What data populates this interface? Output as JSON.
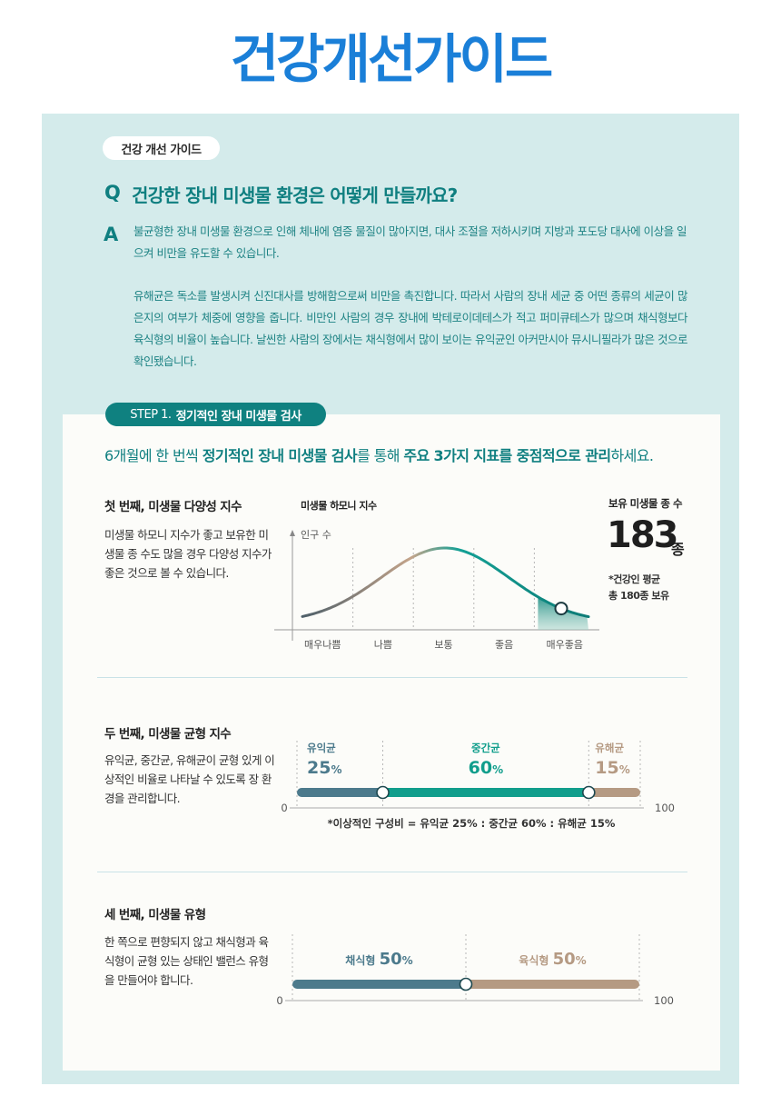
{
  "page_title": "건강개선가이드",
  "guide_badge": "건강 개선 가이드",
  "qa": {
    "q_letter": "Q",
    "question": "건강한 장내 미생물 환경은 어떻게 만들까요?",
    "a_letter": "A",
    "answer_p1": "불균형한 장내 미생물 환경으로 인해 체내에 염증 물질이 많아지면, 대사 조절을 저하시키며 지방과 포도당 대사에 이상을 일으켜 비만을 유도할 수 있습니다.",
    "answer_p2": "유해균은 독소를 발생시켜 신진대사를 방해함으로써 비만을 촉진합니다. 따라서 사람의 장내 세균 중 어떤 종류의 세균이 많은지의 여부가 체중에 영향을 줍니다. 비만인 사람의 경우 장내에 박테로이데테스가 적고 퍼미큐테스가 많으며 채식형보다 육식형의 비율이 높습니다. 날씬한 사람의 장에서는 채식형에서 많이 보이는 유익균인 아커만시아 뮤시니필라가 많은 것으로 확인됐습니다."
  },
  "step": {
    "badge_prefix": "STEP 1.",
    "badge_title": "정기적인 장내 미생물 검사",
    "intro_1": "6개월에 한 번씩 ",
    "intro_2": "정기적인 장내 미생물 검사",
    "intro_3": "를 통해 ",
    "intro_4": "주요 3가지 지표를 중점적으로 관리",
    "intro_5": "하세요."
  },
  "section1": {
    "title": "첫 번째, 미생물 다양성 지수",
    "desc": "미생물 하모니 지수가 좋고 보유한 미생물 종 수도 많을 경우 다양성 지수가 좋은 것으로 볼 수 있습니다.",
    "chart_title": "미생물 하모니 지수",
    "count_label": "보유 미생물 종 수",
    "count_value": "183",
    "count_unit": "종",
    "note_1": "*건강인 평균",
    "note_2": "총 180종 보유"
  },
  "section2": {
    "title": "두 번째, 미생물 균형 지수",
    "desc": "유익균, 중간균, 유해균이 균형 있게 이상적인 비율로 나타날 수 있도록 장 환경을 관리합니다.",
    "note": "*이상적인 구성비 = 유익균 25% : 중간균 60% : 유해균 15%"
  },
  "section3": {
    "title": "세 번째, 미생물 유형",
    "desc": "한 쪽으로 편향되지 않고 채식형과 육식형이 균형 있는 상태인 밸런스 유형을 만들어야 합니다."
  },
  "colors": {
    "primary_blue": "#1a7fd8",
    "teal": "#0f7f80",
    "bg_mint": "#d4ebeb",
    "slate": "#4c7a8c",
    "bar_teal": "#119e8c",
    "tan": "#b59a83"
  },
  "chart_data": [
    {
      "type": "area",
      "title": "미생물 하모니 지수",
      "ylabel": "인구 수",
      "categories": [
        "매우나쁨",
        "나쁨",
        "보통",
        "좋음",
        "매우좋음"
      ],
      "current_category": "매우좋음"
    },
    {
      "type": "bar",
      "stacked": true,
      "range": [
        0,
        100
      ],
      "axis_min_label": "0",
      "axis_max_label": "100",
      "series": [
        {
          "name": "유익균",
          "value": 25,
          "label": "25",
          "unit": "%",
          "color": "#4c7a8c"
        },
        {
          "name": "중간균",
          "value": 60,
          "label": "60",
          "unit": "%",
          "color": "#119e8c"
        },
        {
          "name": "유해균",
          "value": 15,
          "label": "15",
          "unit": "%",
          "color": "#b59a83"
        }
      ]
    },
    {
      "type": "bar",
      "stacked": true,
      "range": [
        0,
        100
      ],
      "axis_min_label": "0",
      "axis_max_label": "100",
      "series": [
        {
          "name": "채식형",
          "value": 50,
          "label": "50",
          "unit": "%",
          "color": "#4c7a8c"
        },
        {
          "name": "육식형",
          "value": 50,
          "label": "50",
          "unit": "%",
          "color": "#b59a83"
        }
      ]
    }
  ]
}
